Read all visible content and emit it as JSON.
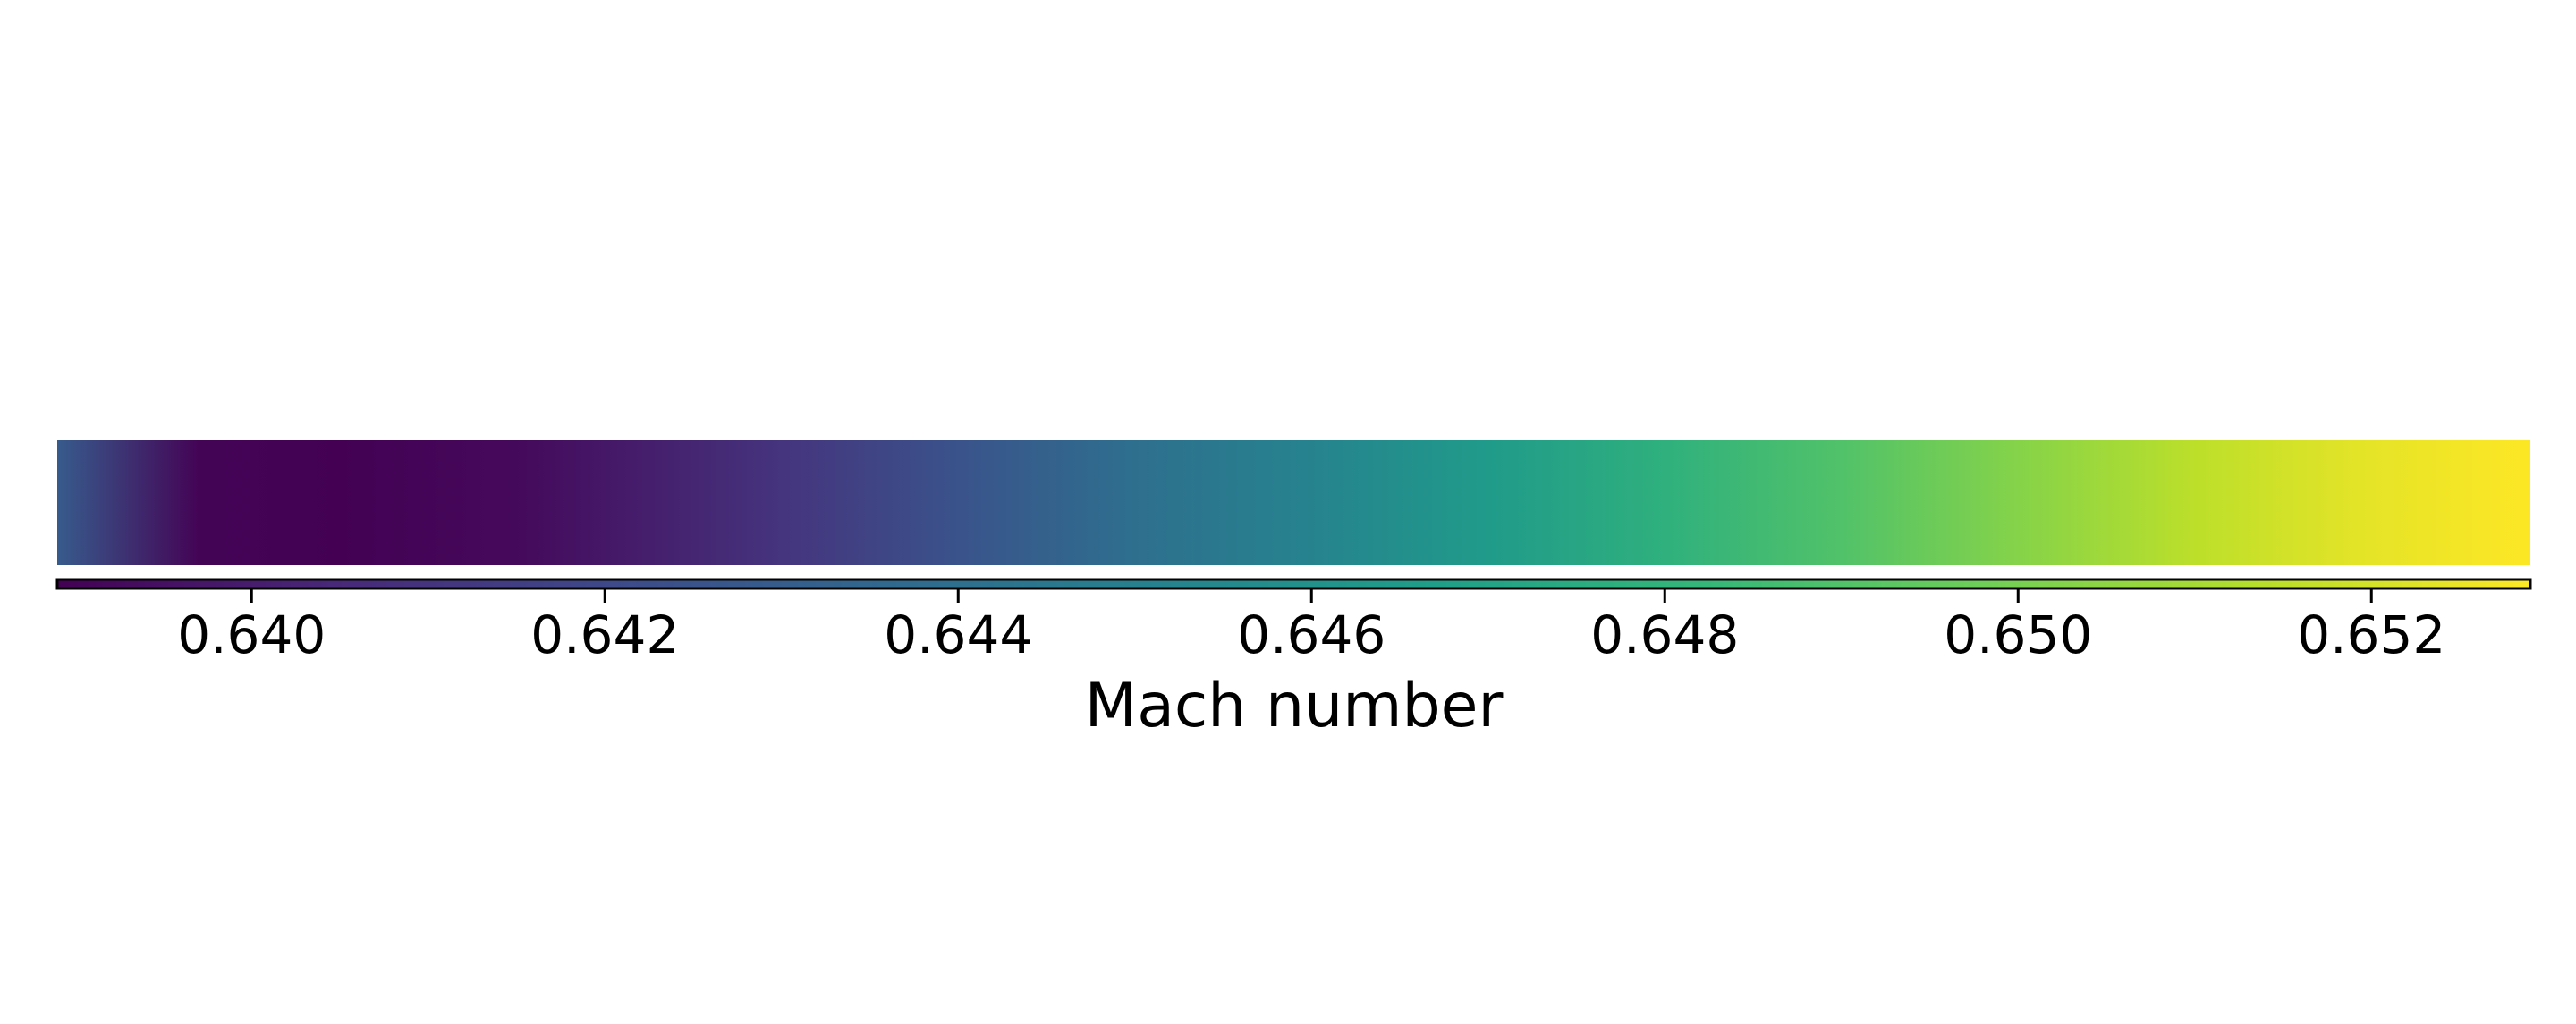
{
  "chart_data": {
    "type": "heatmap",
    "title": "",
    "xlabel": "Mach number",
    "ylabel": "",
    "colormap": "viridis",
    "xlim": [
      0.6389,
      0.6529
    ],
    "ticks": [
      0.64,
      0.642,
      0.644,
      0.646,
      0.648,
      0.65,
      0.652
    ],
    "tick_labels": [
      "0.640",
      "0.642",
      "0.644",
      "0.646",
      "0.648",
      "0.650",
      "0.652"
    ],
    "field_samples": {
      "x": [
        0.6389,
        0.6397,
        0.6405,
        0.6415,
        0.643,
        0.644,
        0.645,
        0.646,
        0.647,
        0.648,
        0.649,
        0.65,
        0.651,
        0.652,
        0.6529
      ],
      "value": [
        0.6429,
        0.639,
        0.6389,
        0.6392,
        0.641,
        0.6425,
        0.644,
        0.6452,
        0.6465,
        0.6478,
        0.649,
        0.6503,
        0.6515,
        0.6524,
        0.6529
      ]
    }
  },
  "colors": {
    "viridis": [
      "#440154",
      "#482878",
      "#3e4989",
      "#31688e",
      "#26828e",
      "#1f9e89",
      "#35b779",
      "#6ece58",
      "#b5de2b",
      "#fde725"
    ],
    "outline": "#000000",
    "background": "#ffffff"
  }
}
